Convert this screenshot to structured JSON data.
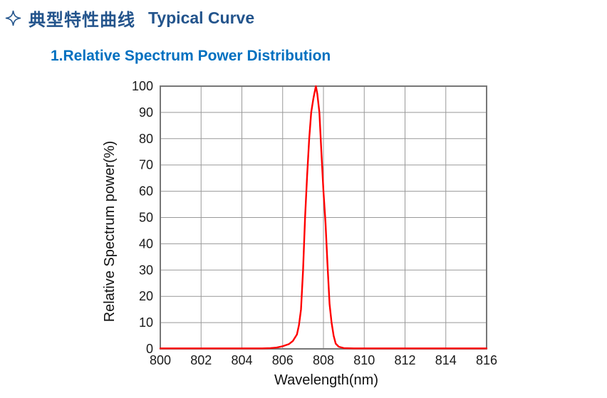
{
  "header": {
    "icon": "four-pointed-star",
    "title_zh": "典型特性曲线",
    "title_en": "Typical Curve"
  },
  "section": {
    "heading": "1.Relative Spectrum Power Distribution"
  },
  "colors": {
    "header_blue": "#23548C",
    "heading_blue": "#0070C0",
    "curve_red": "#FF0000",
    "gridline_gray": "#999999",
    "border_gray": "#777777",
    "tick_text": "#1a1a1a"
  },
  "chart_data": {
    "type": "line",
    "title": "",
    "xlabel": "Wavelength(nm)",
    "ylabel": "Relative Spectrum power(%)",
    "xlim": [
      800,
      816
    ],
    "ylim": [
      0,
      100
    ],
    "x_ticks": [
      800,
      802,
      804,
      806,
      808,
      810,
      812,
      814,
      816
    ],
    "y_ticks": [
      0,
      10,
      20,
      30,
      40,
      50,
      60,
      70,
      80,
      90,
      100
    ],
    "grid": true,
    "legend_position": "none",
    "series": [
      {
        "name": "Relative Spectrum Power",
        "color": "#FF0000",
        "x": [
          800,
          801,
          802,
          803,
          804,
          805,
          805.4,
          805.7,
          806.0,
          806.3,
          806.5,
          806.7,
          806.8,
          806.9,
          807.0,
          807.1,
          807.2,
          807.3,
          807.4,
          807.5,
          807.55,
          807.63,
          807.7,
          807.8,
          807.9,
          808.0,
          808.1,
          808.2,
          808.3,
          808.4,
          808.5,
          808.6,
          808.75,
          809.0,
          809.5,
          810,
          811,
          812,
          813,
          814,
          815,
          816
        ],
        "y": [
          0.2,
          0.2,
          0.2,
          0.2,
          0.2,
          0.2,
          0.3,
          0.5,
          1.0,
          1.8,
          3.0,
          5.5,
          9,
          15,
          30,
          50,
          66,
          80,
          90,
          95,
          97,
          100,
          97,
          90,
          75,
          60,
          48,
          32,
          17,
          10,
          5,
          2,
          0.8,
          0.3,
          0.2,
          0.2,
          0.2,
          0.2,
          0.2,
          0.2,
          0.2,
          0.2
        ]
      }
    ]
  }
}
